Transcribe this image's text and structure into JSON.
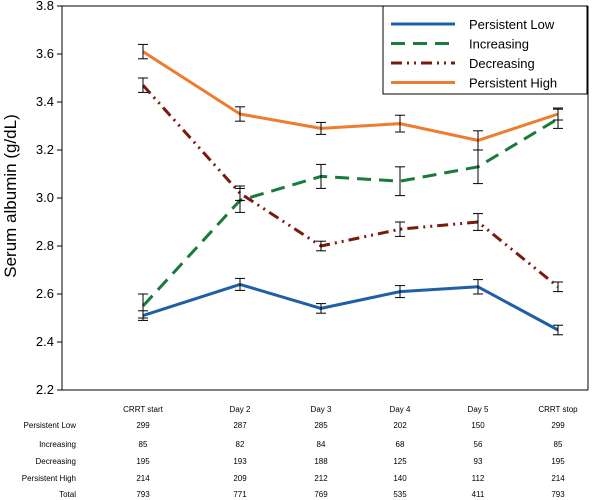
{
  "chart_data": {
    "type": "line",
    "categories": [
      "CRRT start",
      "Day 2",
      "Day 3",
      "Day 4",
      "Day 5",
      "CRRT stop"
    ],
    "ylabel": "Serum albumin (g/dL)",
    "xlabel": "",
    "ylim": [
      2.2,
      3.8
    ],
    "yticks": [
      "2.2",
      "2.4",
      "2.6",
      "2.8",
      "3.0",
      "3.2",
      "3.4",
      "3.6",
      "3.8"
    ],
    "legend_position": "top-right",
    "grid": false,
    "series": [
      {
        "name": "Persistent Low",
        "color": "#1f5fa8",
        "dash": "solid",
        "values": [
          2.51,
          2.64,
          2.54,
          2.61,
          2.63,
          2.45
        ],
        "errors": [
          0.02,
          0.025,
          0.02,
          0.025,
          0.03,
          0.02
        ]
      },
      {
        "name": "Increasing",
        "color": "#1a7a3a",
        "dash": "dash",
        "values": [
          2.55,
          2.99,
          3.09,
          3.07,
          3.13,
          3.33
        ],
        "errors": [
          0.05,
          0.05,
          0.05,
          0.06,
          0.07,
          0.04
        ]
      },
      {
        "name": "Decreasing",
        "color": "#7a1a0e",
        "dash": "dashdotdot",
        "values": [
          3.47,
          3.02,
          2.8,
          2.87,
          2.9,
          2.63
        ],
        "errors": [
          0.03,
          0.03,
          0.02,
          0.03,
          0.035,
          0.02
        ]
      },
      {
        "name": "Persistent High",
        "color": "#ee7c2e",
        "dash": "solid",
        "values": [
          3.61,
          3.35,
          3.29,
          3.31,
          3.24,
          3.35
        ],
        "errors": [
          0.03,
          0.03,
          0.025,
          0.035,
          0.04,
          0.025
        ]
      }
    ]
  },
  "table": {
    "rows": [
      {
        "label": "Persistent Low",
        "values": [
          "299",
          "287",
          "285",
          "202",
          "150",
          "299"
        ]
      },
      {
        "label": "Increasing",
        "values": [
          "85",
          "82",
          "84",
          "68",
          "56",
          "85"
        ]
      },
      {
        "label": "Decreasing",
        "values": [
          "195",
          "193",
          "188",
          "125",
          "93",
          "195"
        ]
      },
      {
        "label": "Persistent High",
        "values": [
          "214",
          "209",
          "212",
          "140",
          "112",
          "214"
        ]
      },
      {
        "label": "Total",
        "values": [
          "793",
          "771",
          "769",
          "535",
          "411",
          "793"
        ]
      }
    ]
  }
}
